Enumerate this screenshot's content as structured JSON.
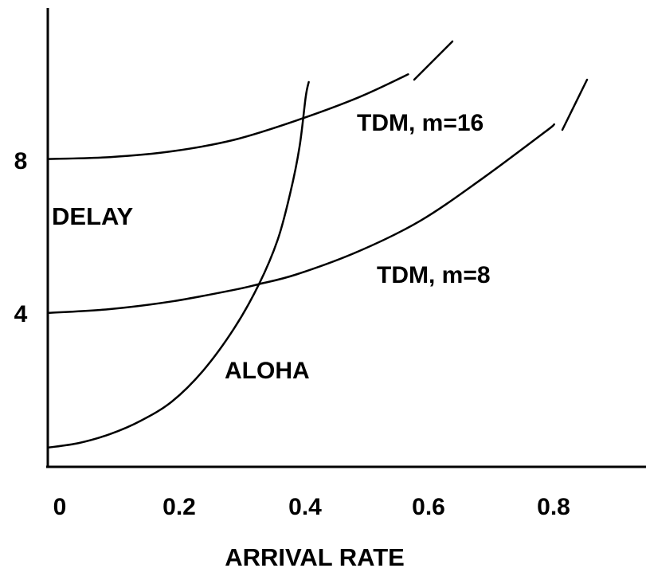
{
  "chart_data": {
    "type": "line",
    "title": "",
    "xlabel": "ARRIVAL RATE",
    "ylabel": "DELAY",
    "xlim": [
      0,
      0.95
    ],
    "ylim": [
      0,
      12
    ],
    "x_ticks": [
      "0",
      "0.2",
      "0.4",
      "0.6",
      "0.8"
    ],
    "y_ticks": [
      "4",
      "8"
    ],
    "grid": false,
    "legend": "none",
    "series": [
      {
        "name": "ALOHA",
        "x": [
          0,
          0.05,
          0.1,
          0.15,
          0.2,
          0.25,
          0.3,
          0.34,
          0.37,
          0.39,
          0.405,
          0.415,
          0.42
        ],
        "y": [
          0.5,
          0.62,
          0.85,
          1.2,
          1.7,
          2.5,
          3.6,
          4.75,
          5.9,
          7.1,
          8.3,
          9.6,
          10.0
        ]
      },
      {
        "name": "TDM, m=8",
        "x": [
          0,
          0.1,
          0.2,
          0.3,
          0.34,
          0.4,
          0.5,
          0.6,
          0.7,
          0.8,
          0.815
        ],
        "y": [
          4.0,
          4.1,
          4.3,
          4.6,
          4.75,
          5.0,
          5.6,
          6.4,
          7.5,
          8.7,
          8.9
        ]
      },
      {
        "name": "TDM, m=16",
        "x": [
          0,
          0.1,
          0.2,
          0.3,
          0.4,
          0.5,
          0.58
        ],
        "y": [
          8.0,
          8.05,
          8.2,
          8.5,
          9.0,
          9.6,
          10.2
        ]
      }
    ],
    "annotations": [
      {
        "text": "TDM, m=16",
        "x": 0.55,
        "y": 9.0
      },
      {
        "text": "TDM, m=8",
        "x": 0.6,
        "y": 5.0
      },
      {
        "text": "ALOHA",
        "x": 0.33,
        "y": 2.6
      }
    ]
  }
}
